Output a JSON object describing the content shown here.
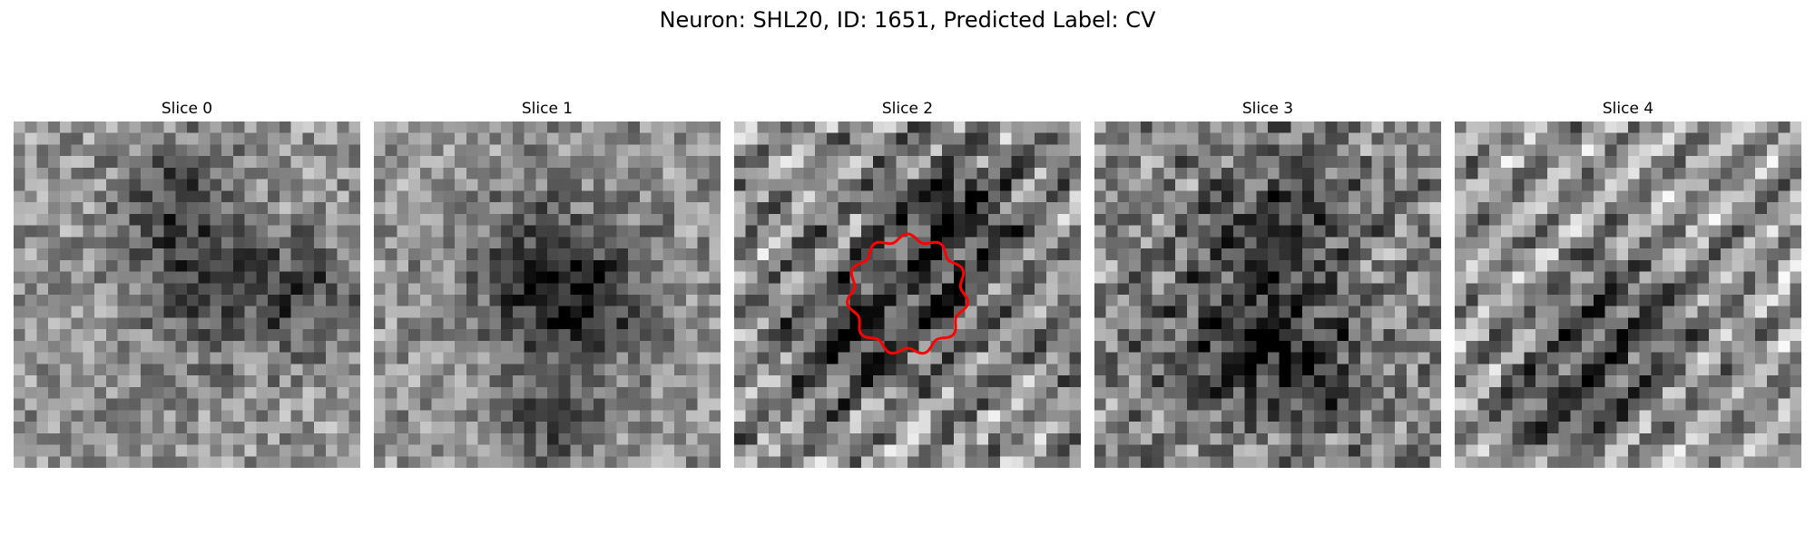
{
  "figure": {
    "title": "Neuron: SHL20, ID: 1651, Predicted Label: CV"
  },
  "panels": [
    {
      "title": "Slice 0",
      "mean": 0.58,
      "contrast": 0.22,
      "stripe": 0.03,
      "dark_spots": [
        [
          0.46,
          0.22,
          0.12
        ],
        [
          0.55,
          0.48,
          0.14
        ],
        [
          0.85,
          0.5,
          0.12
        ]
      ]
    },
    {
      "title": "Slice 1",
      "mean": 0.57,
      "contrast": 0.2,
      "stripe": 0.04,
      "dark_spots": [
        [
          0.48,
          0.45,
          0.16
        ],
        [
          0.62,
          0.52,
          0.14
        ],
        [
          0.52,
          0.88,
          0.1
        ]
      ]
    },
    {
      "title": "Slice 2",
      "mean": 0.56,
      "contrast": 0.24,
      "stripe": 0.18,
      "dark_spots": [
        [
          0.55,
          0.5,
          0.18
        ],
        [
          0.28,
          0.65,
          0.12
        ],
        [
          0.66,
          0.22,
          0.12
        ]
      ]
    },
    {
      "title": "Slice 3",
      "mean": 0.52,
      "contrast": 0.25,
      "stripe": 0.08,
      "dark_spots": [
        [
          0.55,
          0.28,
          0.14
        ],
        [
          0.4,
          0.62,
          0.16
        ],
        [
          0.62,
          0.72,
          0.12
        ]
      ]
    },
    {
      "title": "Slice 4",
      "mean": 0.6,
      "contrast": 0.2,
      "stripe": 0.2,
      "dark_spots": [
        [
          0.48,
          0.6,
          0.16
        ],
        [
          0.3,
          0.85,
          0.12
        ]
      ]
    }
  ],
  "overlay": {
    "panel_index": 2,
    "color": "#ff0000",
    "shape": "wavy-circle"
  },
  "colors": {
    "colormap": "grayscale",
    "background": "#ffffff"
  }
}
